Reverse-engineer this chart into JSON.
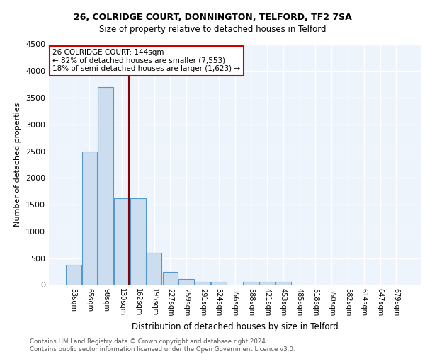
{
  "title1": "26, COLRIDGE COURT, DONNINGTON, TELFORD, TF2 7SA",
  "title2": "Size of property relative to detached houses in Telford",
  "xlabel": "Distribution of detached houses by size in Telford",
  "ylabel": "Number of detached properties",
  "categories": [
    "33sqm",
    "65sqm",
    "98sqm",
    "130sqm",
    "162sqm",
    "195sqm",
    "227sqm",
    "259sqm",
    "291sqm",
    "324sqm",
    "356sqm",
    "388sqm",
    "421sqm",
    "453sqm",
    "485sqm",
    "518sqm",
    "550sqm",
    "582sqm",
    "614sqm",
    "647sqm",
    "679sqm"
  ],
  "values": [
    375,
    2500,
    3700,
    1625,
    1625,
    600,
    240,
    110,
    60,
    55,
    0,
    55,
    60,
    55,
    0,
    0,
    0,
    0,
    0,
    0,
    0
  ],
  "bar_color": "#ccddf0",
  "bar_edge_color": "#5599cc",
  "vline_color": "#8b0000",
  "annotation_text": "26 COLRIDGE COURT: 144sqm\n← 82% of detached houses are smaller (7,553)\n18% of semi-detached houses are larger (1,623) →",
  "annotation_box_color": "white",
  "annotation_box_edge_color": "#cc0000",
  "footer": "Contains HM Land Registry data © Crown copyright and database right 2024.\nContains public sector information licensed under the Open Government Licence v3.0.",
  "ylim": [
    0,
    4500
  ],
  "background_color": "#eef4fb",
  "grid_color": "white"
}
